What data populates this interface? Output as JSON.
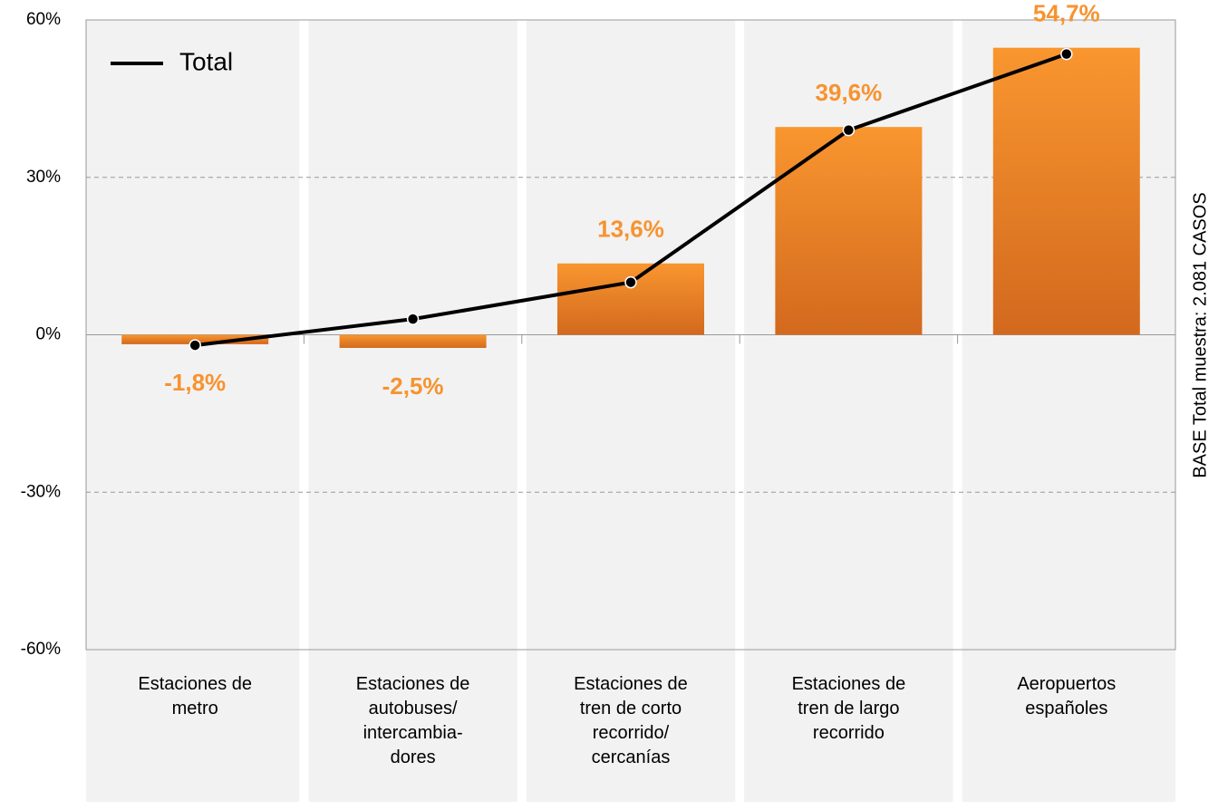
{
  "chart_data": {
    "type": "bar_line",
    "categories": [
      "Estaciones de\nmetro",
      "Estaciones de\nautobuses/\nintercambia-\ndores",
      "Estaciones de\ntren de corto\nrecorrido/\ncercanías",
      "Estaciones de\ntren de largo\nrecorrido",
      "Aeropuertos\nespañoles"
    ],
    "values": [
      -1.8,
      -2.5,
      13.6,
      39.6,
      54.7
    ],
    "value_labels": [
      "-1,8%",
      "-2,5%",
      "13,6%",
      "39,6%",
      "54,7%"
    ],
    "color": "#f7932f",
    "series": [
      {
        "name": "Total",
        "color": "#000000",
        "values": [
          -2,
          3,
          10,
          39,
          53.5
        ]
      }
    ],
    "ylim": [
      -60,
      60
    ],
    "yticks": [
      {
        "value": -60,
        "label": "-60%"
      },
      {
        "value": -30,
        "label": "-30%"
      },
      {
        "value": 0,
        "label": "0%"
      },
      {
        "value": 30,
        "label": "30%"
      },
      {
        "value": 60,
        "label": "60%"
      }
    ],
    "grid": true,
    "legend": "upper left",
    "annotation": "BASE Total muestra: 2.081 CASOS"
  }
}
